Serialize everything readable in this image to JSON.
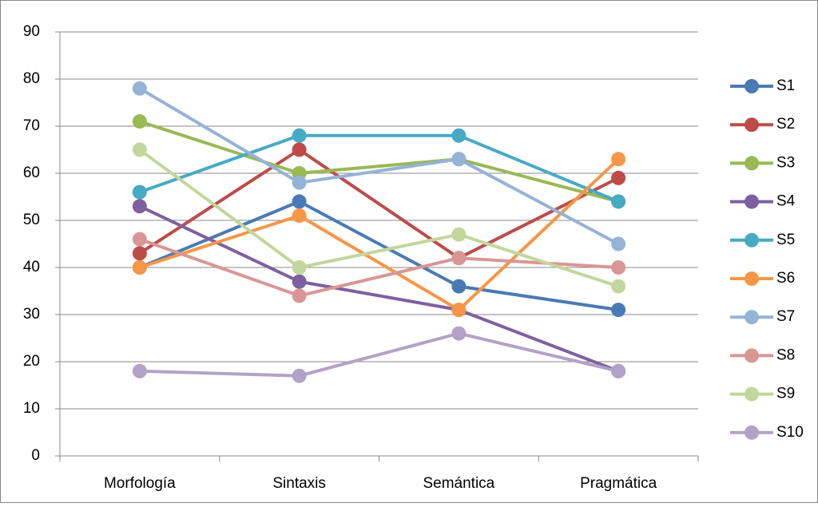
{
  "chart_data": {
    "type": "line",
    "categories": [
      "Morfología",
      "Sintaxis",
      "Semántica",
      "Pragmática"
    ],
    "ylim": [
      0,
      90
    ],
    "yticks": [
      0,
      10,
      20,
      30,
      40,
      50,
      60,
      70,
      80,
      90
    ],
    "grid": true,
    "legend": "right",
    "series": [
      {
        "name": "S1",
        "color": "#4a7ab5",
        "values": [
          40,
          54,
          36,
          31
        ]
      },
      {
        "name": "S2",
        "color": "#be4b48",
        "values": [
          43,
          65,
          42,
          59
        ]
      },
      {
        "name": "S3",
        "color": "#98b954",
        "values": [
          71,
          60,
          63,
          54
        ]
      },
      {
        "name": "S4",
        "color": "#7d60a0",
        "values": [
          53,
          37,
          31,
          18
        ]
      },
      {
        "name": "S5",
        "color": "#46aac5",
        "values": [
          56,
          68,
          68,
          54
        ]
      },
      {
        "name": "S6",
        "color": "#f79646",
        "values": [
          40,
          51,
          31,
          63
        ]
      },
      {
        "name": "S7",
        "color": "#95b3d7",
        "values": [
          78,
          58,
          63,
          45
        ]
      },
      {
        "name": "S8",
        "color": "#d99694",
        "values": [
          46,
          34,
          42,
          40
        ]
      },
      {
        "name": "S9",
        "color": "#c3d69b",
        "values": [
          65,
          40,
          47,
          36
        ]
      },
      {
        "name": "S10",
        "color": "#b3a2c7",
        "values": [
          18,
          17,
          26,
          18
        ]
      }
    ]
  }
}
